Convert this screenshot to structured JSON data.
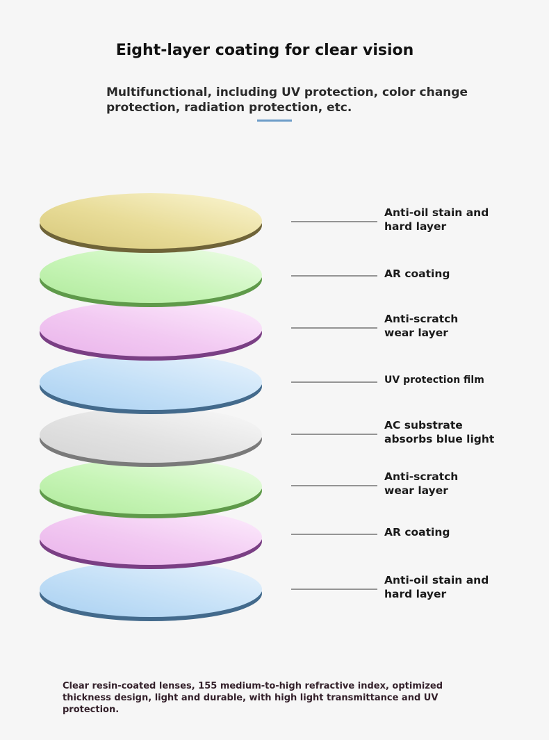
{
  "header": {
    "title": "Eight-layer coating for clear vision",
    "subtitle": "Multifunctional, including UV protection, color change protection, radiation protection, etc."
  },
  "layers": [
    {
      "label": "Anti-oil stain and\nhard layer",
      "fill_light": "#fbf6d4",
      "fill_mid": "#e8dc98",
      "fill_dark": "#d6c77a",
      "rim": "#6f6438"
    },
    {
      "label": "AR coating",
      "fill_light": "#effde9",
      "fill_mid": "#c8f5b8",
      "fill_dark": "#b0ea9c",
      "rim": "#5f9a4a"
    },
    {
      "label": "Anti-scratch\nwear layer",
      "fill_light": "#fdeffd",
      "fill_mid": "#f2c9f2",
      "fill_dark": "#e9b3ea",
      "rim": "#7a3f84"
    },
    {
      "label": "UV protection film",
      "fill_light": "#eaf4fd",
      "fill_mid": "#c4e0f7",
      "fill_dark": "#a9d0f1",
      "rim": "#436a8c"
    },
    {
      "label": "AC substrate\nabsorbs blue light",
      "fill_light": "#fafafa",
      "fill_mid": "#e2e2e2",
      "fill_dark": "#d4d4d4",
      "rim": "#7a7a7a"
    },
    {
      "label": "Anti-scratch\nwear layer",
      "fill_light": "#effde9",
      "fill_mid": "#c8f5b8",
      "fill_dark": "#b0ea9c",
      "rim": "#5f9a4a"
    },
    {
      "label": "AR coating",
      "fill_light": "#fdeffd",
      "fill_mid": "#f2c9f2",
      "fill_dark": "#e9b3ea",
      "rim": "#7a3f84"
    },
    {
      "label": "Anti-oil stain and\nhard layer",
      "fill_light": "#eaf4fd",
      "fill_mid": "#c4e0f7",
      "fill_dark": "#a9d0f1",
      "rim": "#436a8c"
    }
  ],
  "footer": {
    "text": "Clear resin-coated lenses, 155 medium-to-high refractive index, optimized thickness design, light and durable, with high light transmittance and UV protection."
  },
  "colors": {
    "background": "#f6f6f6",
    "accent_underline": "#6c9cc8",
    "leader_line": "#333333"
  }
}
